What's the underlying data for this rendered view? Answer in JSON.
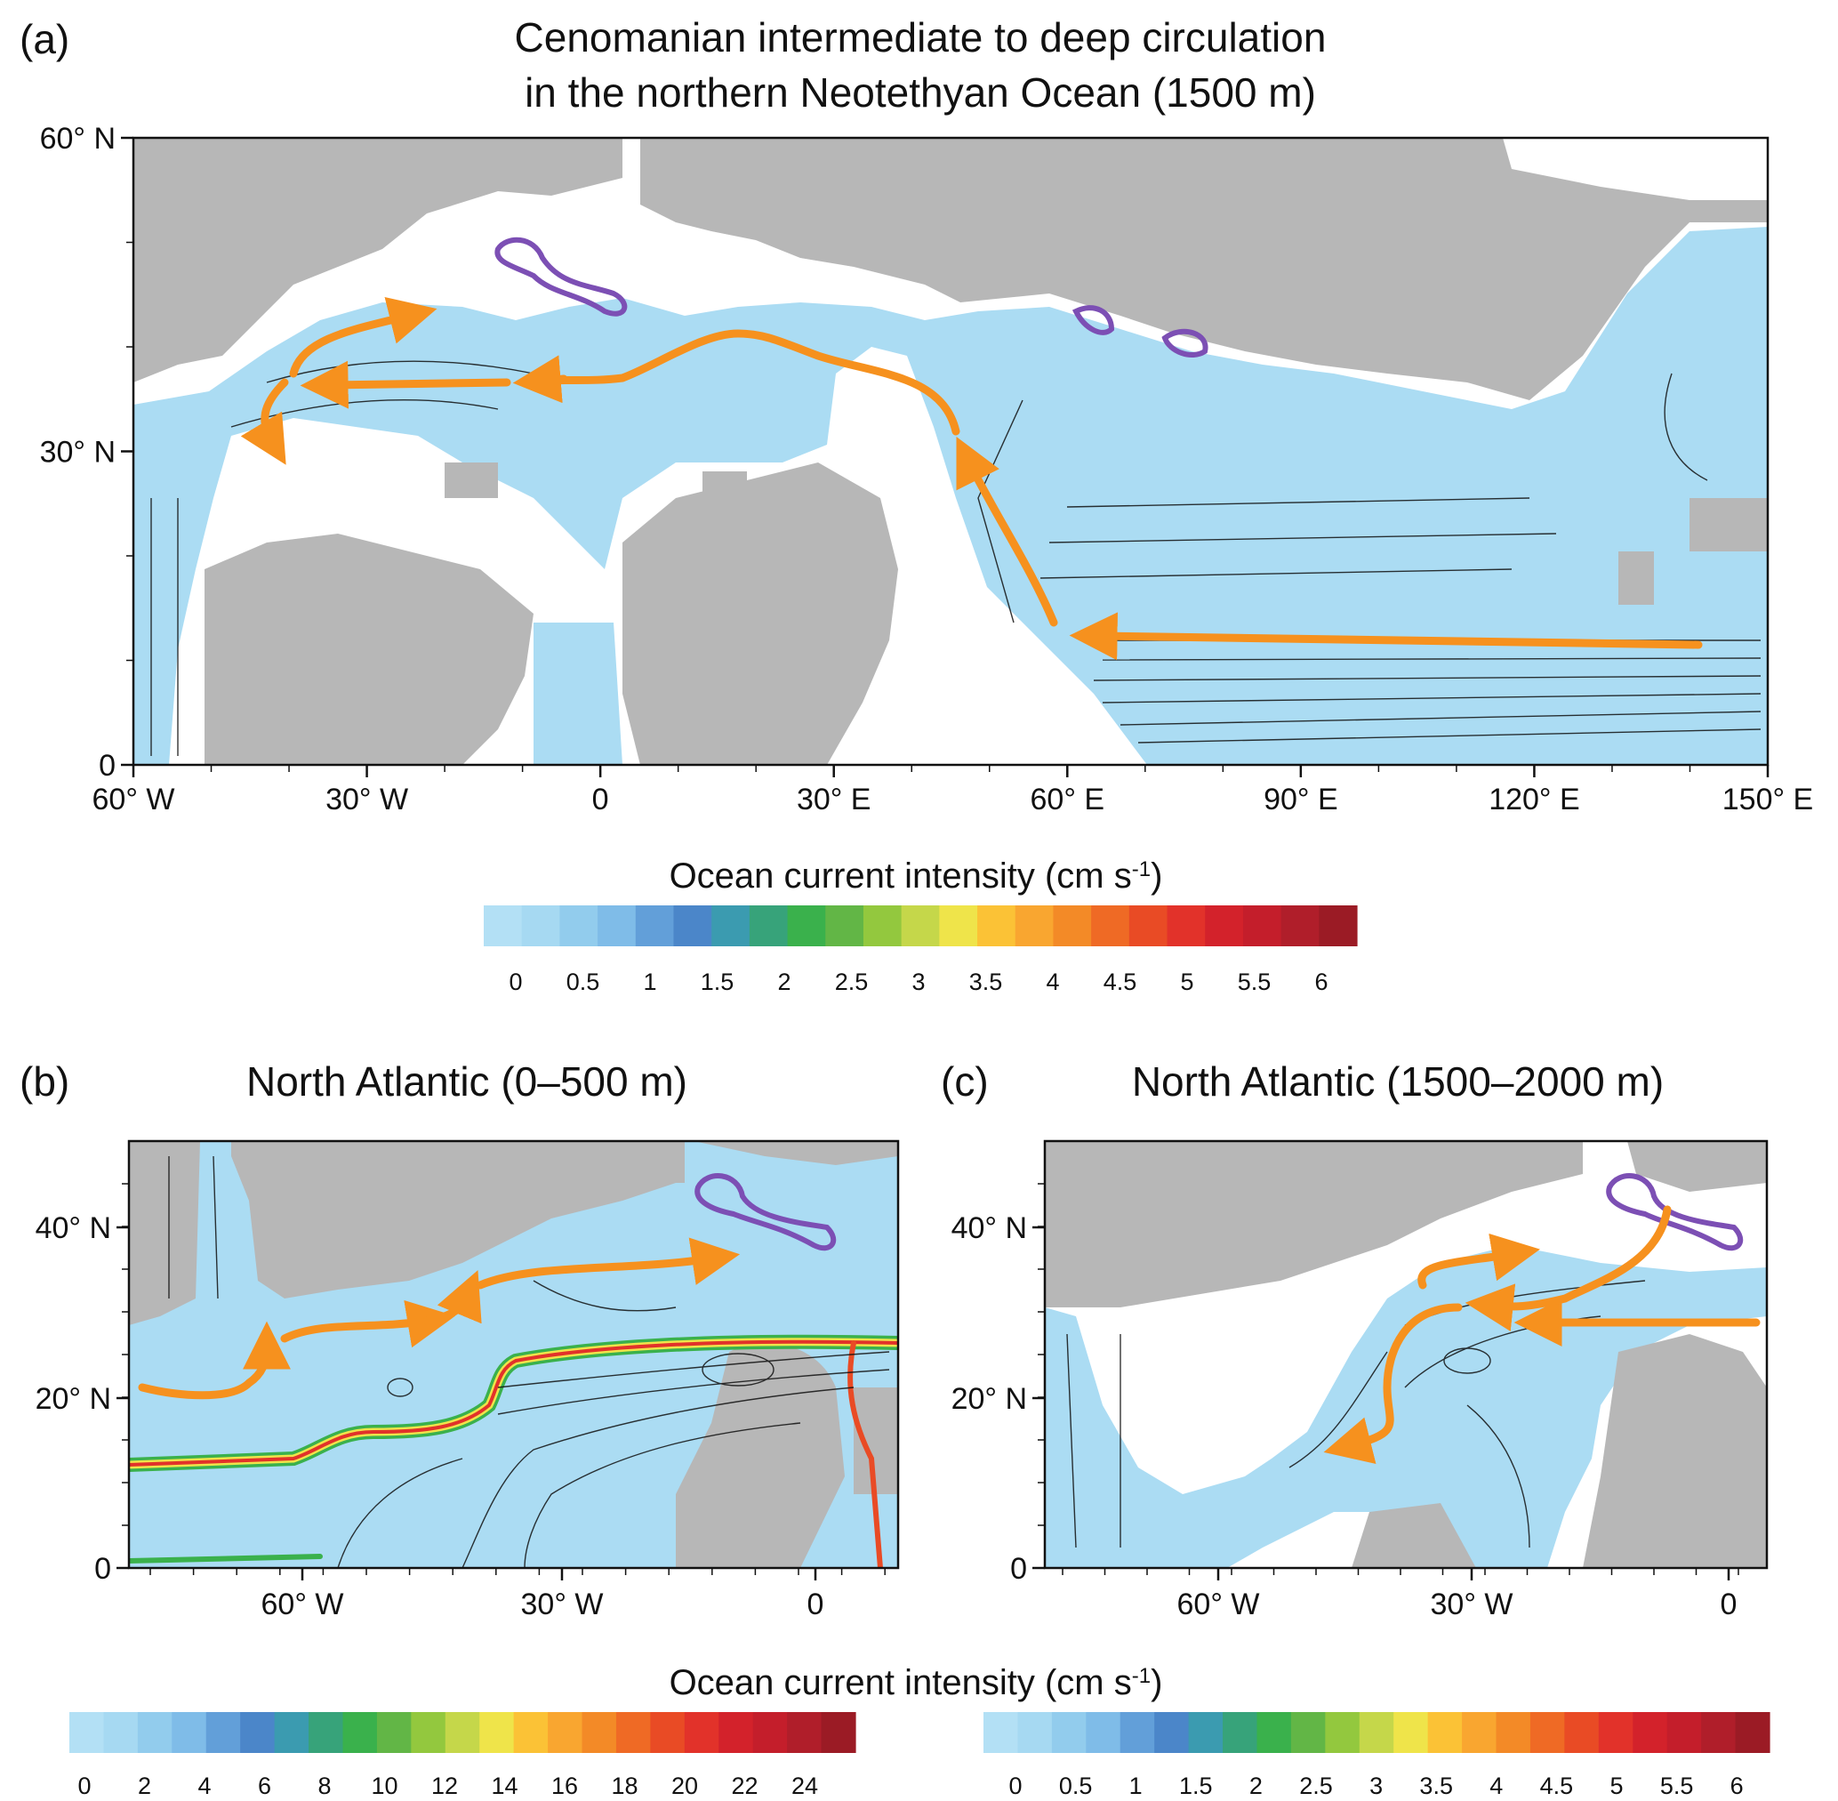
{
  "colors": {
    "land": "#b7b7b7",
    "ocean_no_flow": "#ffffff",
    "low_current": "#abdcf3",
    "arrow": "#f6911e",
    "purple": "#7c4fb4",
    "streamline": "#111111",
    "frame": "#111111"
  },
  "palette": [
    "#b3e0f5",
    "#a6d9f2",
    "#92cced",
    "#7fbce8",
    "#629fd9",
    "#4b86c9",
    "#3b9bb0",
    "#37a37a",
    "#3ab14c",
    "#62b646",
    "#93c83e",
    "#c5d74a",
    "#efe44a",
    "#fbc236",
    "#f9a630",
    "#f38a27",
    "#ef6a25",
    "#e94b25",
    "#e2322a",
    "#d3222b",
    "#c41e2b",
    "#b01e2a",
    "#9b1b25"
  ],
  "panel_a": {
    "label": "(a)",
    "title_line1": "Cenomanian intermediate to deep circulation",
    "title_line2": "in the northern Neotethyan Ocean (1500 m)",
    "x_ticks": [
      "60° W",
      "30° W",
      "0",
      "30° E",
      "60° E",
      "90° E",
      "120° E",
      "150° E"
    ],
    "y_ticks": [
      "60° N",
      "30° N",
      "0"
    ],
    "colorbar": {
      "title": "Ocean current intensity (cm s",
      "title_sup": "-1",
      "title_end": ")",
      "labels": [
        "0",
        "0.5",
        "1",
        "1.5",
        "2",
        "2.5",
        "3",
        "3.5",
        "4",
        "4.5",
        "5",
        "5.5",
        "6"
      ]
    }
  },
  "panel_b": {
    "label": "(b)",
    "title": "North Atlantic (0–500 m)",
    "x_ticks": [
      "60° W",
      "30° W",
      "0"
    ],
    "y_ticks": [
      "40° N",
      "20° N",
      "0"
    ],
    "colorbar_labels": [
      "0",
      "2",
      "4",
      "6",
      "8",
      "10",
      "12",
      "14",
      "16",
      "18",
      "20",
      "22",
      "24"
    ]
  },
  "panel_c": {
    "label": "(c)",
    "title": "North Atlantic (1500–2000 m)",
    "x_ticks": [
      "60° W",
      "30° W",
      "0"
    ],
    "y_ticks": [
      "40° N",
      "20° N",
      "0"
    ],
    "colorbar_labels": [
      "0",
      "0.5",
      "1",
      "1.5",
      "2",
      "2.5",
      "3",
      "3.5",
      "4",
      "4.5",
      "5",
      "5.5",
      "6"
    ]
  },
  "bottom_colorbar": {
    "title": "Ocean current intensity (cm s",
    "title_sup": "-1",
    "title_end": ")"
  }
}
